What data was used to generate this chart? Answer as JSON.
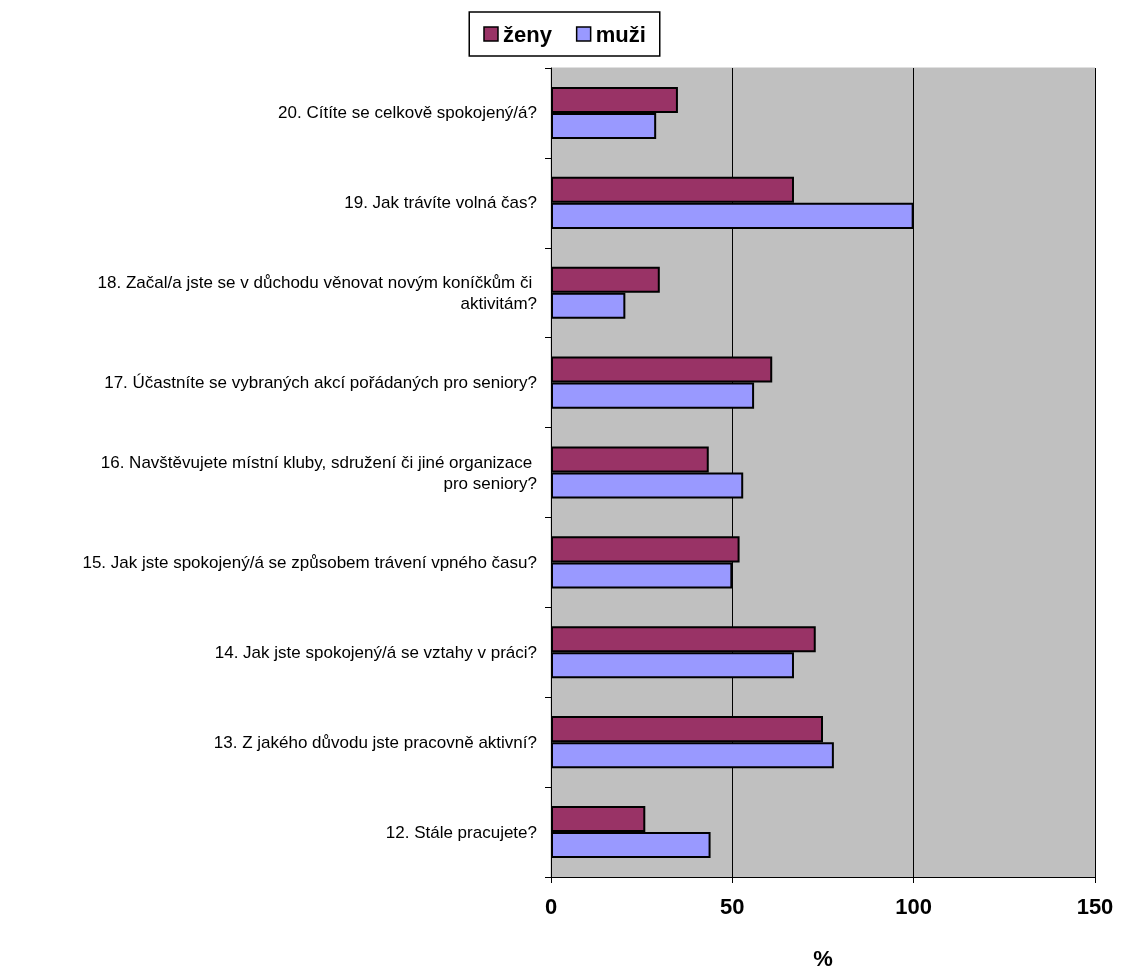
{
  "chart_data": {
    "type": "bar",
    "orientation": "horizontal",
    "xlabel": "%",
    "categories": [
      "20. Cítíte se celkově spokojený/á?",
      "19. Jak trávíte volná čas?",
      "18. Začal/a jste se v důchodu věnovat novým koníčkům či aktivitám?",
      "17. Účastníte se vybraných akcí pořádaných pro seniory?",
      "16. Navštěvujete místní kluby, sdružení či jiné organizace pro seniory?",
      "15. Jak jste spokojený/á se způsobem trávení vpného času?",
      "14. Jak jste spokojený/á se vztahy v práci?",
      "13. Z jakého důvodu jste pracovně aktivní?",
      "12. Stále pracujete?"
    ],
    "series": [
      {
        "name": "ženy",
        "color": "#993366",
        "values": [
          35,
          67,
          30,
          61,
          43.5,
          52,
          73,
          75,
          26
        ]
      },
      {
        "name": "muži",
        "color": "#9999ff",
        "values": [
          29,
          100,
          20.5,
          56,
          53,
          50,
          67,
          78,
          44
        ]
      }
    ],
    "xlim": [
      0,
      150
    ],
    "xticks": [
      0,
      50,
      100,
      150
    ],
    "grid": "x",
    "legend": "top"
  }
}
